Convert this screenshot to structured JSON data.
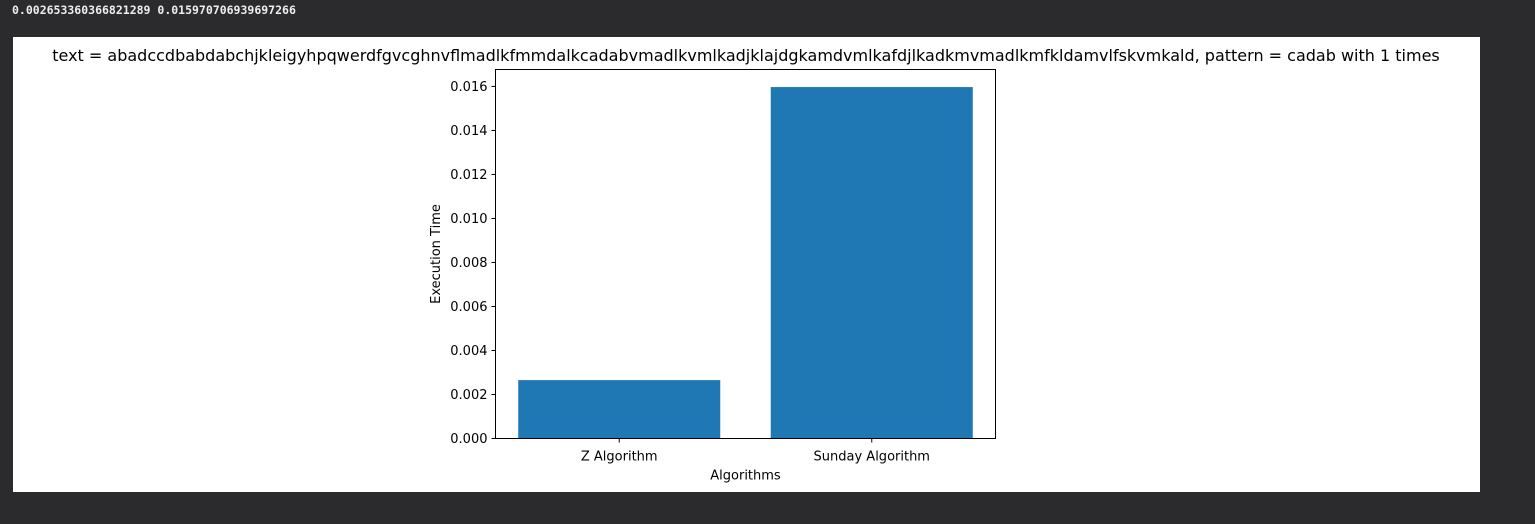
{
  "output": {
    "stdout_line": "0.002653360366821289 0.015970706939697266"
  },
  "chart_data": {
    "type": "bar",
    "title": "text = abadccdbabdabchjkleigyhpqwerdfgvcghnvflmadlkfmmdalkcadabvmadlkvmlkadjklajdgkamdvmlkafdjlkadkmvmadlkmfkldamvlfskvmkald, pattern = cadab  with 1 times",
    "categories": [
      "Z Algorithm",
      "Sunday Algorithm"
    ],
    "values": [
      0.002653360366821289,
      0.015970706939697266
    ],
    "xlabel": "Algorithms",
    "ylabel": "Execution Time",
    "ylim": [
      0,
      0.01676924228668213
    ],
    "yticks": [
      0.0,
      0.002,
      0.004,
      0.006,
      0.008,
      0.01,
      0.012,
      0.014,
      0.016
    ],
    "ytick_labels": [
      "0.000",
      "0.002",
      "0.004",
      "0.006",
      "0.008",
      "0.010",
      "0.012",
      "0.014",
      "0.016"
    ],
    "bar_color": "#1f77b4",
    "grid": false,
    "legend": "none"
  }
}
